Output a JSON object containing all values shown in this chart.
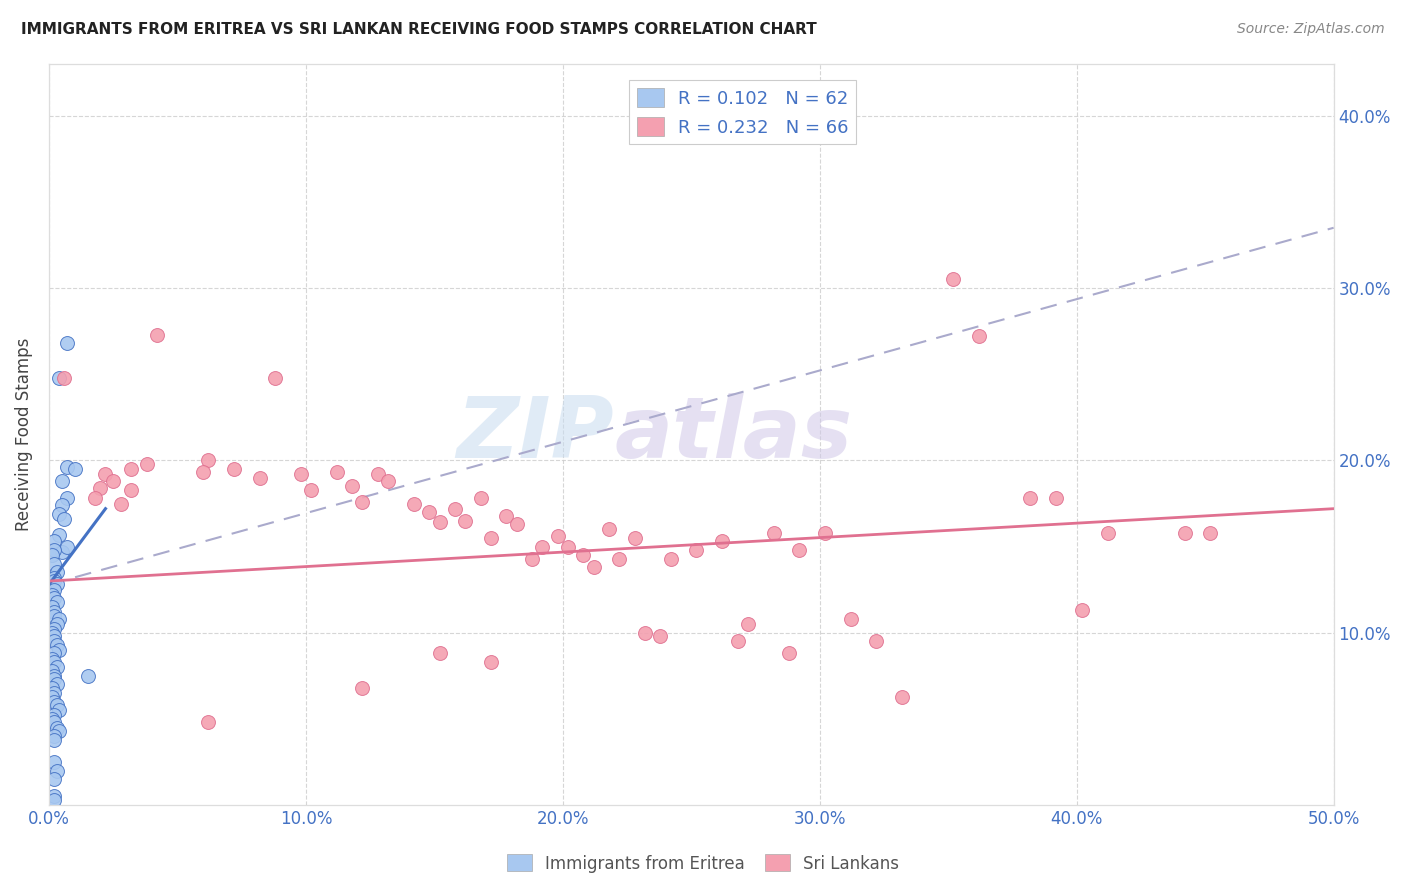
{
  "title": "IMMIGRANTS FROM ERITREA VS SRI LANKAN RECEIVING FOOD STAMPS CORRELATION CHART",
  "source": "Source: ZipAtlas.com",
  "xlabel_ticks": [
    "0.0%",
    "10.0%",
    "20.0%",
    "30.0%",
    "40.0%",
    "50.0%"
  ],
  "xlabel_vals": [
    0.0,
    0.1,
    0.2,
    0.3,
    0.4,
    0.5
  ],
  "ylabel": "Receiving Food Stamps",
  "ylabel_ticks": [
    "10.0%",
    "20.0%",
    "30.0%",
    "40.0%"
  ],
  "ylabel_vals": [
    0.1,
    0.2,
    0.3,
    0.4
  ],
  "xlim": [
    0.0,
    0.5
  ],
  "ylim": [
    0.0,
    0.43
  ],
  "legend_label1": "Immigrants from Eritrea",
  "legend_label2": "Sri Lankans",
  "R1": 0.102,
  "N1": 62,
  "R2": 0.232,
  "N2": 66,
  "color_blue": "#A8C8F0",
  "color_blue_line": "#4472C4",
  "color_pink": "#F4A0B0",
  "color_pink_line": "#E07090",
  "color_legend_text": "#4472C4",
  "color_ticks": "#4472C4",
  "background": "#FFFFFF",
  "watermark_zip": "ZIP",
  "watermark_atlas": "atlas",
  "blue_trend_x": [
    0.0,
    0.022
  ],
  "blue_trend_y": [
    0.128,
    0.172
  ],
  "pink_trend_x": [
    0.0,
    0.5
  ],
  "pink_trend_y": [
    0.13,
    0.172
  ],
  "dash_trend_x": [
    0.0,
    0.5
  ],
  "dash_trend_y": [
    0.128,
    0.335
  ],
  "scatter_blue": [
    [
      0.005,
      0.147
    ],
    [
      0.007,
      0.268
    ],
    [
      0.004,
      0.248
    ],
    [
      0.007,
      0.196
    ],
    [
      0.005,
      0.188
    ],
    [
      0.007,
      0.178
    ],
    [
      0.01,
      0.195
    ],
    [
      0.005,
      0.174
    ],
    [
      0.004,
      0.169
    ],
    [
      0.006,
      0.166
    ],
    [
      0.004,
      0.157
    ],
    [
      0.002,
      0.153
    ],
    [
      0.007,
      0.15
    ],
    [
      0.002,
      0.148
    ],
    [
      0.001,
      0.145
    ],
    [
      0.002,
      0.14
    ],
    [
      0.003,
      0.135
    ],
    [
      0.002,
      0.132
    ],
    [
      0.002,
      0.13
    ],
    [
      0.003,
      0.128
    ],
    [
      0.002,
      0.125
    ],
    [
      0.001,
      0.122
    ],
    [
      0.002,
      0.12
    ],
    [
      0.003,
      0.118
    ],
    [
      0.001,
      0.115
    ],
    [
      0.002,
      0.112
    ],
    [
      0.002,
      0.11
    ],
    [
      0.004,
      0.108
    ],
    [
      0.003,
      0.105
    ],
    [
      0.002,
      0.102
    ],
    [
      0.001,
      0.1
    ],
    [
      0.002,
      0.098
    ],
    [
      0.002,
      0.095
    ],
    [
      0.003,
      0.093
    ],
    [
      0.004,
      0.09
    ],
    [
      0.002,
      0.088
    ],
    [
      0.001,
      0.085
    ],
    [
      0.002,
      0.083
    ],
    [
      0.003,
      0.08
    ],
    [
      0.001,
      0.078
    ],
    [
      0.002,
      0.075
    ],
    [
      0.002,
      0.073
    ],
    [
      0.003,
      0.07
    ],
    [
      0.001,
      0.068
    ],
    [
      0.002,
      0.065
    ],
    [
      0.001,
      0.063
    ],
    [
      0.002,
      0.06
    ],
    [
      0.003,
      0.058
    ],
    [
      0.004,
      0.055
    ],
    [
      0.002,
      0.052
    ],
    [
      0.001,
      0.05
    ],
    [
      0.002,
      0.048
    ],
    [
      0.003,
      0.045
    ],
    [
      0.004,
      0.043
    ],
    [
      0.002,
      0.04
    ],
    [
      0.002,
      0.038
    ],
    [
      0.002,
      0.025
    ],
    [
      0.003,
      0.02
    ],
    [
      0.002,
      0.015
    ],
    [
      0.015,
      0.075
    ],
    [
      0.002,
      0.005
    ],
    [
      0.002,
      0.003
    ]
  ],
  "scatter_pink": [
    [
      0.006,
      0.248
    ],
    [
      0.022,
      0.192
    ],
    [
      0.02,
      0.184
    ],
    [
      0.025,
      0.188
    ],
    [
      0.032,
      0.183
    ],
    [
      0.018,
      0.178
    ],
    [
      0.028,
      0.175
    ],
    [
      0.038,
      0.198
    ],
    [
      0.032,
      0.195
    ],
    [
      0.042,
      0.273
    ],
    [
      0.062,
      0.2
    ],
    [
      0.06,
      0.193
    ],
    [
      0.072,
      0.195
    ],
    [
      0.082,
      0.19
    ],
    [
      0.088,
      0.248
    ],
    [
      0.098,
      0.192
    ],
    [
      0.102,
      0.183
    ],
    [
      0.112,
      0.193
    ],
    [
      0.118,
      0.185
    ],
    [
      0.122,
      0.176
    ],
    [
      0.128,
      0.192
    ],
    [
      0.132,
      0.188
    ],
    [
      0.142,
      0.175
    ],
    [
      0.148,
      0.17
    ],
    [
      0.152,
      0.164
    ],
    [
      0.158,
      0.172
    ],
    [
      0.162,
      0.165
    ],
    [
      0.168,
      0.178
    ],
    [
      0.172,
      0.155
    ],
    [
      0.178,
      0.168
    ],
    [
      0.182,
      0.163
    ],
    [
      0.188,
      0.143
    ],
    [
      0.192,
      0.15
    ],
    [
      0.198,
      0.156
    ],
    [
      0.202,
      0.15
    ],
    [
      0.208,
      0.145
    ],
    [
      0.212,
      0.138
    ],
    [
      0.218,
      0.16
    ],
    [
      0.222,
      0.143
    ],
    [
      0.228,
      0.155
    ],
    [
      0.232,
      0.1
    ],
    [
      0.238,
      0.098
    ],
    [
      0.242,
      0.143
    ],
    [
      0.252,
      0.148
    ],
    [
      0.262,
      0.153
    ],
    [
      0.268,
      0.095
    ],
    [
      0.272,
      0.105
    ],
    [
      0.282,
      0.158
    ],
    [
      0.288,
      0.088
    ],
    [
      0.292,
      0.148
    ],
    [
      0.302,
      0.158
    ],
    [
      0.312,
      0.108
    ],
    [
      0.322,
      0.095
    ],
    [
      0.332,
      0.063
    ],
    [
      0.352,
      0.305
    ],
    [
      0.362,
      0.272
    ],
    [
      0.382,
      0.178
    ],
    [
      0.392,
      0.178
    ],
    [
      0.402,
      0.113
    ],
    [
      0.412,
      0.158
    ],
    [
      0.442,
      0.158
    ],
    [
      0.452,
      0.158
    ],
    [
      0.062,
      0.048
    ],
    [
      0.122,
      0.068
    ],
    [
      0.152,
      0.088
    ],
    [
      0.172,
      0.083
    ]
  ]
}
